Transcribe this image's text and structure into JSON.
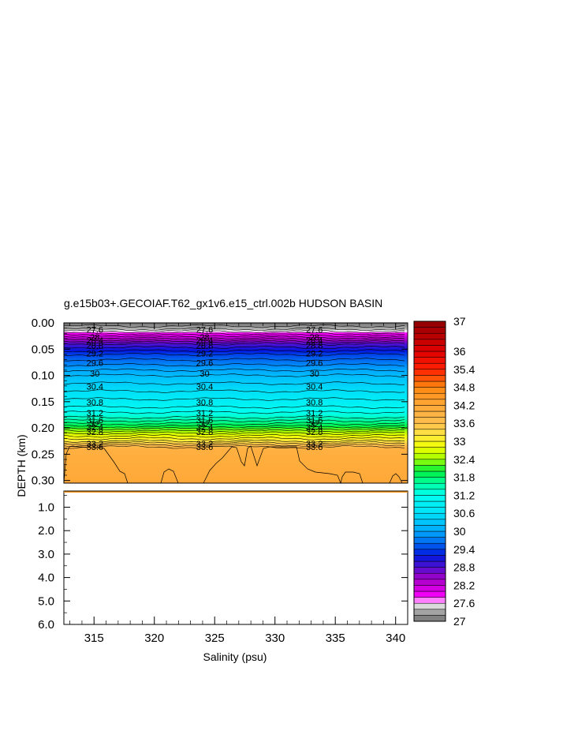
{
  "chart_data": {
    "type": "heatmap",
    "title": "g.e15b03+.GECOIAF.T62_gx1v6.e15_ctrl.002b HUDSON BASIN",
    "xlabel": "Salinity (psu)",
    "ylabel": "DEPTH (km)",
    "xlim": [
      312.5,
      341
    ],
    "x_ticks": [
      "315",
      "320",
      "325",
      "330",
      "335",
      "340"
    ],
    "upper_panel": {
      "ylim": [
        0.0,
        0.305
      ],
      "y_ticks": [
        "0.00",
        "0.05",
        "0.10",
        "0.15",
        "0.20",
        "0.25",
        "0.30"
      ]
    },
    "lower_panel": {
      "ylim": [
        0.31,
        6.0
      ],
      "y_ticks": [
        "1.0",
        "2.0",
        "3.0",
        "4.0",
        "5.0",
        "6.0"
      ]
    },
    "colorbar": {
      "range": [
        27,
        37
      ],
      "step": 0.2,
      "labels": [
        "37",
        "36",
        "35.4",
        "34.8",
        "34.2",
        "33.6",
        "33",
        "32.4",
        "31.8",
        "31.2",
        "30.6",
        "30",
        "29.4",
        "28.8",
        "28.2",
        "27.6",
        "27"
      ]
    },
    "profile": [
      {
        "depth": 0.0,
        "value": 27.0
      },
      {
        "depth": 0.012,
        "value": 27.4
      },
      {
        "depth": 0.02,
        "value": 27.8
      },
      {
        "depth": 0.04,
        "value": 28.8
      },
      {
        "depth": 0.06,
        "value": 29.4
      },
      {
        "depth": 0.08,
        "value": 29.8
      },
      {
        "depth": 0.1,
        "value": 30.2
      },
      {
        "depth": 0.13,
        "value": 30.6
      },
      {
        "depth": 0.16,
        "value": 31.0
      },
      {
        "depth": 0.18,
        "value": 31.4
      },
      {
        "depth": 0.195,
        "value": 31.9
      },
      {
        "depth": 0.21,
        "value": 32.6
      },
      {
        "depth": 0.225,
        "value": 33.2
      },
      {
        "depth": 0.24,
        "value": 34.0
      },
      {
        "depth": 0.305,
        "value": 34.2
      }
    ],
    "contour_labels": [
      {
        "value": "27.6",
        "depth": 0.013
      },
      {
        "value": "28",
        "depth": 0.027
      },
      {
        "value": "28.4",
        "depth": 0.033
      },
      {
        "value": "28.8",
        "depth": 0.043
      },
      {
        "value": "29.2",
        "depth": 0.058
      },
      {
        "value": "29.6",
        "depth": 0.076
      },
      {
        "value": "30",
        "depth": 0.096
      },
      {
        "value": "30.4",
        "depth": 0.121
      },
      {
        "value": "30.8",
        "depth": 0.151
      },
      {
        "value": "31.2",
        "depth": 0.171
      },
      {
        "value": "31.6",
        "depth": 0.185
      },
      {
        "value": "32",
        "depth": 0.192
      },
      {
        "value": "32.4",
        "depth": 0.198
      },
      {
        "value": "32.8",
        "depth": 0.207
      },
      {
        "value": "33.2",
        "depth": 0.23
      },
      {
        "value": "33.6",
        "depth": 0.236
      }
    ],
    "label_columns": [
      315.2,
      324.3,
      333.4
    ],
    "grid": false,
    "legend": "right colorbar"
  }
}
